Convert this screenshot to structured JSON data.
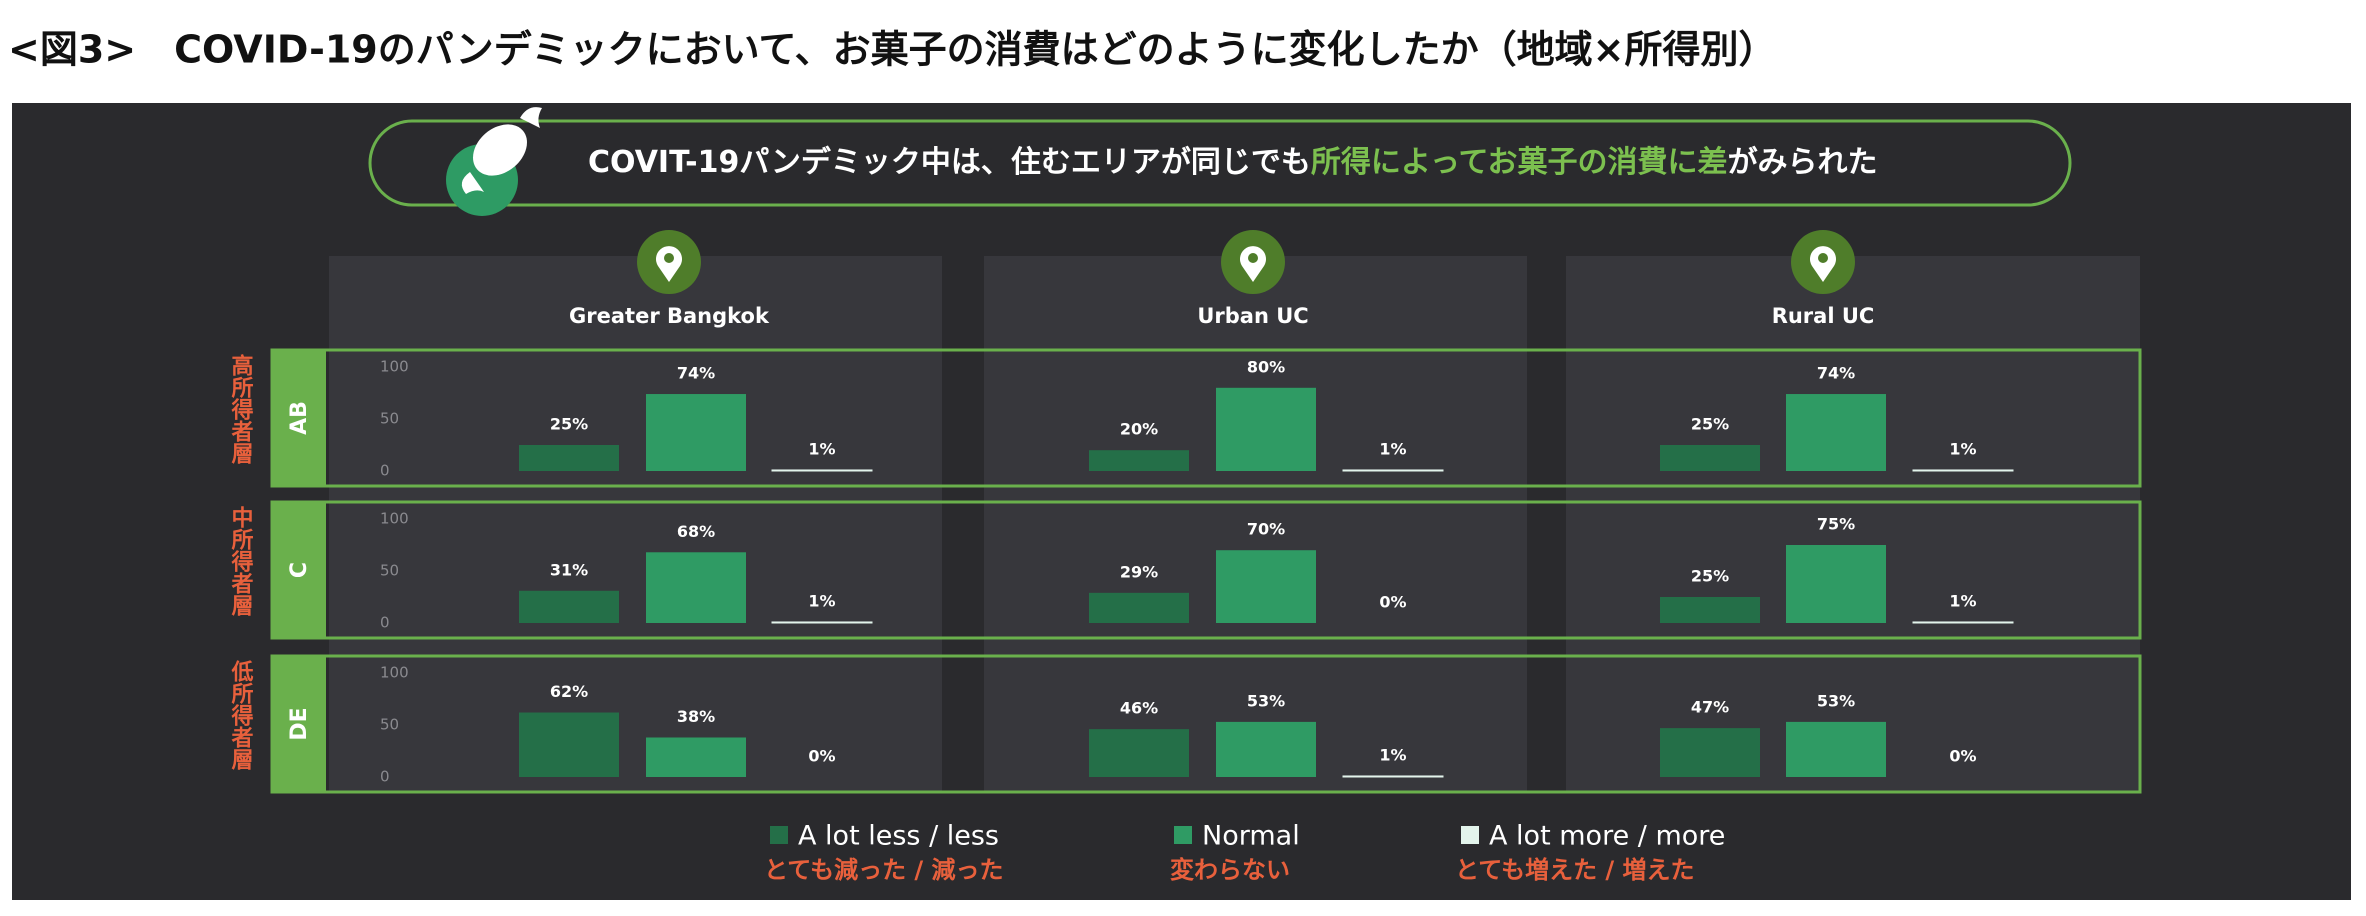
{
  "title": "<図3>　COVID-19のパンデミックにおいて、お菓子の消費はどのように変化したか（地域×所得別）",
  "banner": {
    "lead": "COVIT-19パンデミック中は、住むエリアが同じでも",
    "highlight": "所得によってお菓子の消費に差",
    "tail": "がみられた"
  },
  "chart_data": {
    "type": "bar",
    "regions": [
      "Greater Bangkok",
      "Urban UC",
      "Rural UC"
    ],
    "segments": [
      {
        "code": "AB",
        "label": "高所得者層"
      },
      {
        "code": "C",
        "label": "中所得者層"
      },
      {
        "code": "DE",
        "label": "低所得者層"
      }
    ],
    "series": [
      {
        "name": "A lot less / less",
        "subtitle": "とても減った / 減った",
        "color": "#246f48"
      },
      {
        "name": "Normal",
        "subtitle": "変わらない",
        "color": "#2f9b64"
      },
      {
        "name": "A lot more / more",
        "subtitle": "とても増えた / 増えた",
        "color": "#e3f4ec"
      }
    ],
    "ylim": [
      0,
      100
    ],
    "yticks": [
      0,
      50,
      100
    ],
    "values": [
      [
        [
          25,
          74,
          1
        ],
        [
          20,
          80,
          1
        ],
        [
          25,
          74,
          1
        ]
      ],
      [
        [
          31,
          68,
          1
        ],
        [
          29,
          70,
          0
        ],
        [
          25,
          75,
          1
        ]
      ],
      [
        [
          62,
          38,
          0
        ],
        [
          46,
          53,
          1
        ],
        [
          47,
          53,
          0
        ]
      ]
    ],
    "value_labels": [
      [
        [
          "25%",
          "74%",
          "1%"
        ],
        [
          "20%",
          "80%",
          "1%"
        ],
        [
          "25%",
          "74%",
          "1%"
        ]
      ],
      [
        [
          "31%",
          "68%",
          "1%"
        ],
        [
          "29%",
          "70%",
          "0%"
        ],
        [
          "25%",
          "75%",
          "1%"
        ]
      ],
      [
        [
          "62%",
          "38%",
          "0%"
        ],
        [
          "46%",
          "53%",
          "1%"
        ],
        [
          "47%",
          "53%",
          "0%"
        ]
      ]
    ]
  }
}
